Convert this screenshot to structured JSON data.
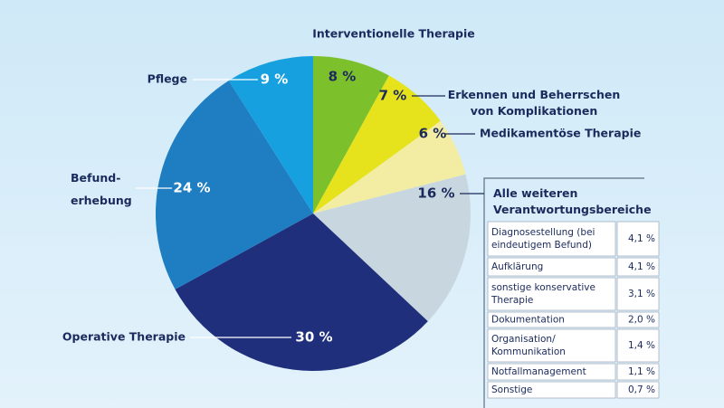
{
  "chart_data": {
    "type": "pie",
    "categories": [
      "Interventionelle Therapie",
      "Erkennen und Beherrschen\nvon Komplikationen",
      "Medikamentöse Therapie",
      "Alle weiteren\nVerantwortungsbereiche",
      "Operative Therapie",
      "Befund-\nerhebung",
      "Pflege"
    ],
    "values": [
      8,
      7,
      6,
      16,
      30,
      24,
      9
    ],
    "value_labels": [
      "8 %",
      "7 %",
      "6 %",
      "16 %",
      "30 %",
      "24 %",
      "9 %"
    ],
    "colors": [
      "#7cc12b",
      "#e6e21c",
      "#f2eda3",
      "#c8d7df",
      "#1f2f7c",
      "#1f7ec2",
      "#17a0df"
    ],
    "table": {
      "rows": [
        [
          "Diagnosestellung (bei\neindeutigem Befund)",
          "4,1 %"
        ],
        [
          "Aufklärung",
          "4,1 %"
        ],
        [
          "sonstige konservative\nTherapie",
          "3,1 %"
        ],
        [
          "Dokumentation",
          "2,0 %"
        ],
        [
          "Organisation/\nKommunikation",
          "1,4 %"
        ],
        [
          "Notfallmanagement",
          "1,1 %"
        ],
        [
          "Sonstige",
          "0,7 %"
        ]
      ]
    }
  }
}
